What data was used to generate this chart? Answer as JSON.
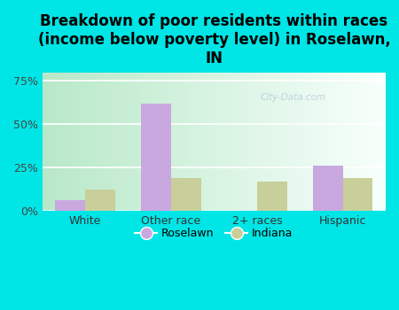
{
  "title": "Breakdown of poor residents within races\n(income below poverty level) in Roselawn,\nIN",
  "categories": [
    "White",
    "Other race",
    "2+ races",
    "Hispanic"
  ],
  "roselawn_values": [
    6,
    62,
    0,
    26
  ],
  "indiana_values": [
    12,
    19,
    17,
    19
  ],
  "roselawn_color": "#c9a8e0",
  "indiana_color": "#c8cf9a",
  "background_color": "#00e5e5",
  "grad_top_color": "#f0fff8",
  "grad_bottom_color": "#c8f0d8",
  "ylim": [
    0,
    80
  ],
  "yticks": [
    0,
    25,
    50,
    75
  ],
  "ytick_labels": [
    "0%",
    "25%",
    "50%",
    "75%"
  ],
  "title_fontsize": 12,
  "bar_width": 0.35,
  "legend_labels": [
    "Roselawn",
    "Indiana"
  ],
  "watermark": "City-Data.com"
}
